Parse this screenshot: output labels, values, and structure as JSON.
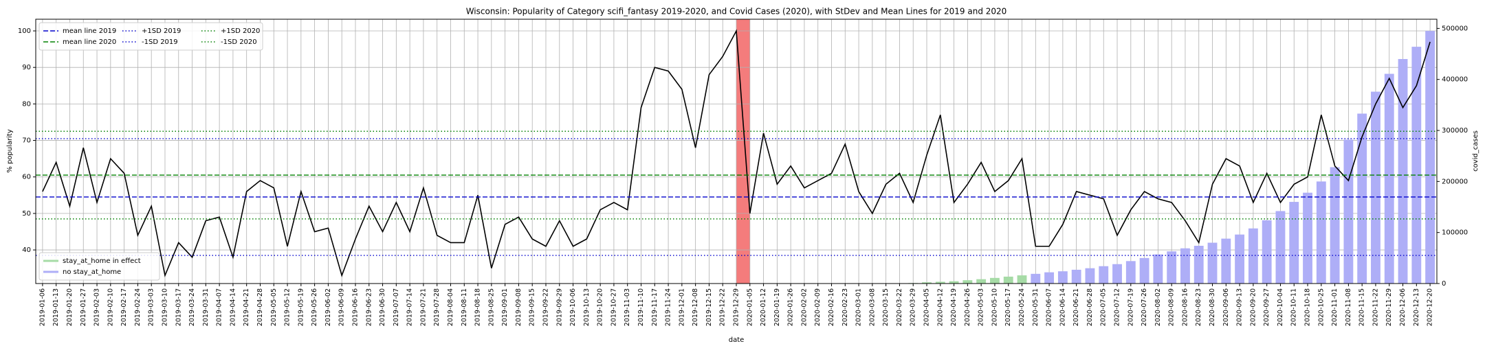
{
  "chart_data": {
    "type": "bar_line",
    "title": "Wisconsin: Popularity of Category scifi_fantasy 2019-2020, and Covid Cases (2020), with StDev and Mean Lines for 2019 and 2020",
    "x_label": "date",
    "y_label": "% popularity",
    "y2_label": "covid_cases",
    "grid": true,
    "legend": "upper left",
    "bar_legend": "lower left",
    "categories": [
      "2019-01-06",
      "2019-01-13",
      "2019-01-20",
      "2019-01-27",
      "2019-02-03",
      "2019-02-10",
      "2019-02-17",
      "2019-02-24",
      "2019-03-03",
      "2019-03-10",
      "2019-03-17",
      "2019-03-24",
      "2019-03-31",
      "2019-04-07",
      "2019-04-14",
      "2019-04-21",
      "2019-04-28",
      "2019-05-05",
      "2019-05-12",
      "2019-05-19",
      "2019-05-26",
      "2019-06-02",
      "2019-06-09",
      "2019-06-16",
      "2019-06-23",
      "2019-06-30",
      "2019-07-07",
      "2019-07-14",
      "2019-07-21",
      "2019-07-28",
      "2019-08-04",
      "2019-08-11",
      "2019-08-18",
      "2019-08-25",
      "2019-09-01",
      "2019-09-08",
      "2019-09-15",
      "2019-09-22",
      "2019-09-29",
      "2019-10-06",
      "2019-10-13",
      "2019-10-20",
      "2019-10-27",
      "2019-11-03",
      "2019-11-10",
      "2019-11-17",
      "2019-11-24",
      "2019-12-01",
      "2019-12-08",
      "2019-12-15",
      "2019-12-22",
      "2019-12-29",
      "2020-01-05",
      "2020-01-12",
      "2020-01-19",
      "2020-01-26",
      "2020-02-02",
      "2020-02-09",
      "2020-02-16",
      "2020-02-23",
      "2020-03-01",
      "2020-03-08",
      "2020-03-15",
      "2020-03-22",
      "2020-03-29",
      "2020-04-05",
      "2020-04-12",
      "2020-04-19",
      "2020-04-26",
      "2020-05-03",
      "2020-05-10",
      "2020-05-17",
      "2020-05-24",
      "2020-05-31",
      "2020-06-07",
      "2020-06-14",
      "2020-06-21",
      "2020-06-28",
      "2020-07-05",
      "2020-07-12",
      "2020-07-19",
      "2020-07-26",
      "2020-08-02",
      "2020-08-09",
      "2020-08-16",
      "2020-08-23",
      "2020-08-30",
      "2020-09-06",
      "2020-09-13",
      "2020-09-20",
      "2020-09-27",
      "2020-10-04",
      "2020-10-11",
      "2020-10-18",
      "2020-10-25",
      "2020-11-01",
      "2020-11-08",
      "2020-11-15",
      "2020-11-22",
      "2020-11-29",
      "2020-12-06",
      "2020-12-13",
      "2020-12-20"
    ],
    "ylim": [
      30.8,
      103.2
    ],
    "yticks": [
      40,
      50,
      60,
      70,
      80,
      90,
      100
    ],
    "y2lim": [
      0,
      518000
    ],
    "y2ticks": [
      0,
      100000,
      200000,
      300000,
      400000,
      500000
    ],
    "series": [
      {
        "type": "line",
        "color": "#000000",
        "values": [
          56,
          64,
          52,
          68,
          53,
          65,
          61,
          44,
          52,
          33,
          42,
          38,
          48,
          49,
          38,
          56,
          59,
          57,
          41,
          56,
          45,
          46,
          33,
          43,
          52,
          45,
          53,
          45,
          57,
          44,
          42,
          42,
          55,
          35,
          47,
          49,
          43,
          41,
          48,
          41,
          43,
          51,
          53,
          51,
          79,
          90,
          89,
          84,
          68,
          88,
          93,
          100,
          50,
          72,
          58,
          63,
          57,
          59,
          61,
          69,
          56,
          50,
          58,
          61,
          53,
          66,
          77,
          53,
          58,
          64,
          56,
          59,
          65,
          41,
          41,
          47,
          56,
          55,
          54,
          44,
          51,
          56,
          54,
          53,
          48,
          42,
          58,
          65,
          63,
          53,
          61,
          53,
          58,
          60,
          77,
          63,
          59,
          71,
          80,
          87,
          79,
          85,
          97
        ]
      },
      {
        "type": "bar",
        "axis": "y2",
        "name": "stay_at_home in effect",
        "color": "#a6dba6",
        "values": [
          null,
          null,
          null,
          null,
          null,
          null,
          null,
          null,
          null,
          null,
          null,
          null,
          null,
          null,
          null,
          null,
          null,
          null,
          null,
          null,
          null,
          null,
          null,
          null,
          null,
          null,
          null,
          null,
          null,
          null,
          null,
          null,
          null,
          null,
          null,
          null,
          null,
          null,
          null,
          null,
          null,
          null,
          null,
          null,
          null,
          null,
          null,
          null,
          null,
          null,
          null,
          null,
          null,
          null,
          null,
          null,
          null,
          null,
          null,
          null,
          null,
          null,
          null,
          null,
          1000,
          2500,
          3500,
          4500,
          6500,
          8500,
          11000,
          13500,
          16000,
          null,
          null,
          null,
          null,
          null,
          null,
          null,
          null,
          null,
          null,
          null,
          null,
          null,
          null,
          null,
          null,
          null,
          null,
          null,
          null,
          null,
          null,
          null,
          null,
          null,
          null,
          null,
          null,
          null,
          null
        ]
      },
      {
        "type": "bar",
        "axis": "y2",
        "name": "no stay_at_home",
        "color": "#aeaef7",
        "values": [
          null,
          null,
          null,
          null,
          null,
          null,
          null,
          null,
          null,
          null,
          null,
          null,
          null,
          null,
          null,
          null,
          null,
          null,
          null,
          null,
          null,
          null,
          null,
          null,
          null,
          null,
          null,
          null,
          null,
          null,
          null,
          null,
          null,
          null,
          null,
          null,
          null,
          null,
          null,
          null,
          null,
          null,
          null,
          null,
          null,
          null,
          null,
          null,
          null,
          null,
          null,
          null,
          null,
          null,
          null,
          null,
          null,
          null,
          null,
          null,
          null,
          null,
          null,
          null,
          null,
          null,
          null,
          null,
          null,
          null,
          null,
          null,
          null,
          19000,
          22000,
          24000,
          27000,
          30000,
          34000,
          38000,
          44000,
          50000,
          57000,
          63000,
          69000,
          74000,
          80000,
          88000,
          96000,
          108000,
          124000,
          142000,
          160000,
          178000,
          200000,
          228000,
          282000,
          333000,
          376000,
          411000,
          440000,
          464000,
          495000
        ]
      }
    ],
    "hlines": [
      {
        "name": "mean line 2019",
        "color": "#0000cc",
        "style": "dashed",
        "value": 54.5
      },
      {
        "name": "mean line 2020",
        "color": "#008000",
        "style": "dashed",
        "value": 60.5
      },
      {
        "name": "+1SD 2019",
        "color": "#0000cc",
        "style": "dotted",
        "value": 70.5
      },
      {
        "name": "-1SD 2019",
        "color": "#0000cc",
        "style": "dotted",
        "value": 38.5
      },
      {
        "name": "+1SD 2020",
        "color": "#008000",
        "style": "dotted",
        "value": 72.5
      },
      {
        "name": "-1SD 2020",
        "color": "#008000",
        "style": "dotted",
        "value": 48.5
      }
    ],
    "vspan": {
      "from": "2019-12-29",
      "to": "2020-01-05",
      "color": "#f47c7c"
    }
  }
}
